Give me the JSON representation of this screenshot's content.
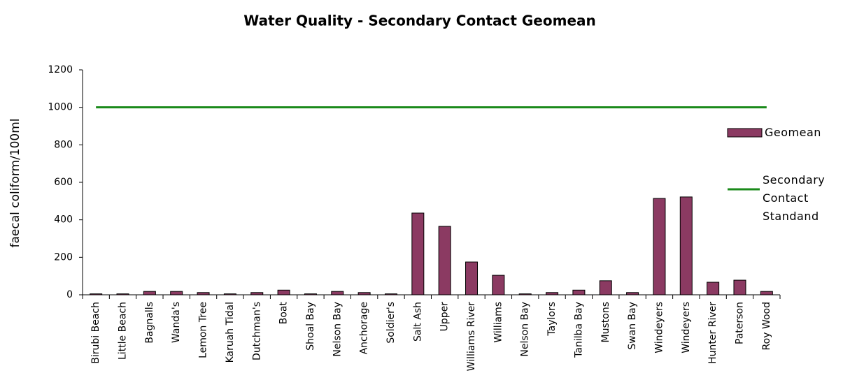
{
  "chart_data": {
    "type": "bar",
    "title": "Water Quality - Secondary Contact Geomean",
    "y_label": "faecal coliform/100ml",
    "categories": [
      "Birubi Beach",
      "Little Beach",
      "Bagnalls",
      "Wanda's",
      "Lemon Tree",
      "Karuah Tidal",
      "Dutchman's",
      "Boat",
      "Shoal Bay",
      "Nelson Bay",
      "Anchorage",
      "Soldier's",
      "Salt Ash",
      "Upper",
      "Williams River",
      "Williams",
      "Nelson Bay",
      "Taylors",
      "Tanilba Bay",
      "Mustons",
      "Swan Bay",
      "Windeyers",
      "Windeyers",
      "Hunter River",
      "Paterson",
      "Roy Wood"
    ],
    "series": [
      {
        "name": "Geomean",
        "type": "bar",
        "color": "#8b3a62",
        "values": [
          5,
          5,
          18,
          18,
          12,
          5,
          12,
          25,
          5,
          18,
          12,
          5,
          436,
          365,
          175,
          104,
          5,
          12,
          25,
          75,
          12,
          514,
          522,
          67,
          78,
          18
        ]
      },
      {
        "name": "Secondary Contact Standand",
        "type": "line",
        "color": "#1a8a1a",
        "values": [
          1000,
          1000,
          1000,
          1000,
          1000,
          1000,
          1000,
          1000,
          1000,
          1000,
          1000,
          1000,
          1000,
          1000,
          1000,
          1000,
          1000,
          1000,
          1000,
          1000,
          1000,
          1000,
          1000,
          1000,
          1000,
          1000
        ]
      }
    ],
    "ylim": [
      0,
      1200
    ],
    "yticks": [
      0,
      200,
      400,
      600,
      800,
      1000,
      1200
    ],
    "legend": "right"
  }
}
